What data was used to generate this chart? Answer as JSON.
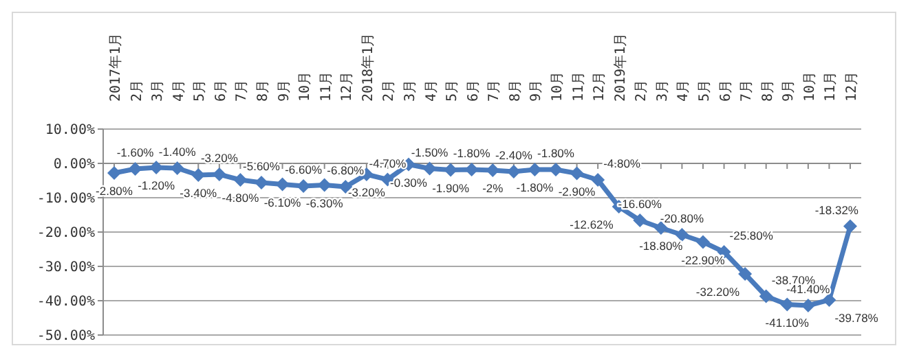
{
  "chart_data": {
    "type": "line",
    "categories": [
      "2017年1月",
      "2月",
      "3月",
      "4月",
      "5月",
      "6月",
      "7月",
      "8月",
      "9月",
      "10月",
      "11月",
      "12月",
      "2018年1月",
      "2月",
      "3月",
      "4月",
      "5月",
      "6月",
      "7月",
      "8月",
      "9月",
      "10月",
      "11月",
      "12月",
      "2019年1月",
      "2月",
      "3月",
      "4月",
      "5月",
      "6月",
      "7月",
      "8月",
      "9月",
      "10月",
      "11月",
      "12月"
    ],
    "series": [
      {
        "color": "#4a7bbd",
        "values": [
          -2.8,
          -1.6,
          -1.2,
          -1.4,
          -3.4,
          -3.2,
          -4.8,
          -5.6,
          -6.1,
          -6.6,
          -6.3,
          -6.8,
          -3.2,
          -4.7,
          -0.3,
          -1.5,
          -1.9,
          -1.8,
          -2,
          -2.4,
          -1.8,
          -1.8,
          -2.9,
          -4.8,
          -12.62,
          -16.6,
          -18.8,
          -20.8,
          -22.9,
          -25.8,
          -32.2,
          -38.7,
          -41.1,
          -41.4,
          -39.78,
          -18.32
        ],
        "value_labels": [
          "-2.80%",
          "-1.60%",
          "-1.20%",
          "-1.40%",
          "-3.40%",
          "-3.20%",
          "-4.80%",
          "-5.60%",
          "-6.10%",
          "-6.60%",
          "-6.30%",
          "-6.80%",
          "-3.20%",
          "-4.70%",
          "-0.30%",
          "-1.50%",
          "-1.90%",
          "-1.80%",
          "-2%",
          "-2.40%",
          "-1.80%",
          "-1.80%",
          "-2.90%",
          "-4.80%",
          "-12.62%",
          "-16.60%",
          "-18.80%",
          "-20.80%",
          "-22.90%",
          "-25.80%",
          "-32.20%",
          "-38.70%",
          "-41.10%",
          "-41.40%",
          "-39.78%",
          "-18.32%"
        ]
      }
    ],
    "ylim": [
      -50,
      10
    ],
    "yticks": [
      {
        "value": 10,
        "label": "10.00%"
      },
      {
        "value": 0,
        "label": "0.00%"
      },
      {
        "value": -10,
        "label": "-10.00%"
      },
      {
        "value": -20,
        "label": "-20.00%"
      },
      {
        "value": -30,
        "label": "-30.00%"
      },
      {
        "value": -40,
        "label": "-40.00%"
      },
      {
        "value": -50,
        "label": "-50.00%"
      }
    ],
    "grid": "y",
    "marker": "diamond",
    "line_style": "solid"
  }
}
